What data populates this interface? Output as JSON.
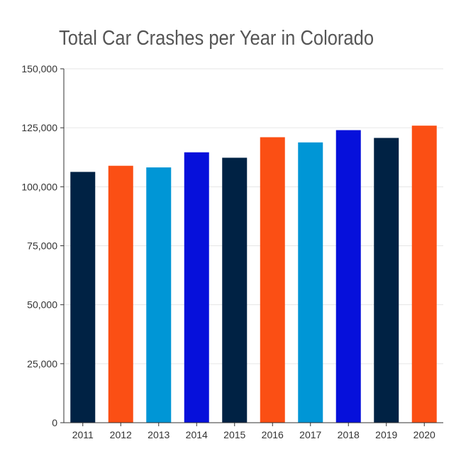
{
  "chart_data": {
    "type": "bar",
    "title": "Total Car Crashes per Year in Colorado",
    "xlabel": "",
    "ylabel": "",
    "categories": [
      "2011",
      "2012",
      "2013",
      "2014",
      "2015",
      "2016",
      "2017",
      "2018",
      "2019",
      "2020"
    ],
    "values": [
      106300,
      108900,
      108200,
      114600,
      112300,
      121000,
      118800,
      124000,
      120700,
      125900
    ],
    "colors": [
      "#002244",
      "#FB4F14",
      "#0096D6",
      "#0610DB",
      "#002244",
      "#FB4F14",
      "#0096D6",
      "#0610DB",
      "#002244",
      "#FB4F14"
    ],
    "ylim": [
      0,
      150000
    ],
    "yticks": [
      0,
      25000,
      50000,
      75000,
      100000,
      125000,
      150000
    ],
    "ytick_labels": [
      "0",
      "25,000",
      "50,000",
      "75,000",
      "100,000",
      "125,000",
      "150,000"
    ],
    "grid": true,
    "legend": "none"
  }
}
